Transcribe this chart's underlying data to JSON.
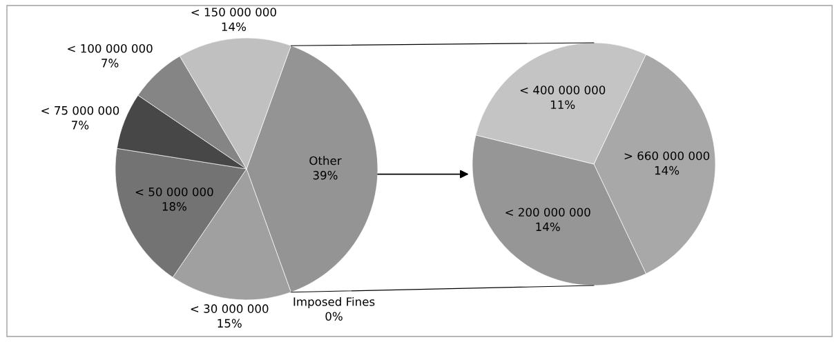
{
  "chart_data": [
    {
      "type": "pie",
      "categories": [
        "Other",
        "Imposed Fines",
        "< 30 000 000",
        "< 50 000 000",
        "< 75 000 000",
        "< 100 000 000",
        "< 150 000 000"
      ],
      "values": [
        39,
        0,
        15,
        18,
        7,
        7,
        14
      ],
      "value_labels": [
        "39%",
        "0%",
        "15%",
        "18%",
        "7%",
        "7%",
        "14%"
      ],
      "colors": [
        "#949494",
        "#5a5a5a",
        "#a0a0a0",
        "#737373",
        "#474747",
        "#858585",
        "#c0c0c0"
      ]
    },
    {
      "type": "pie",
      "categories": [
        "> 660 000 000",
        "< 200 000 000",
        "< 400 000 000"
      ],
      "values": [
        14,
        14,
        11
      ],
      "value_labels": [
        "14%",
        "14%",
        "11%"
      ],
      "colors": [
        "#a8a8a8",
        "#969696",
        "#c4c4c4"
      ]
    }
  ]
}
